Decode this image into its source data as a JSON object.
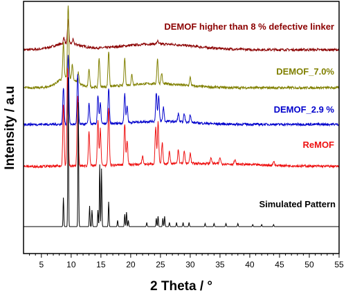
{
  "chart_data": {
    "type": "line",
    "xlabel": "2 Theta /  °",
    "ylabel": "Intensity / a.u",
    "xlim": [
      2,
      55
    ],
    "x_ticks": [
      5,
      10,
      15,
      20,
      25,
      30,
      35,
      40,
      45,
      50,
      55
    ],
    "grid": false,
    "y_ticks_shown": false,
    "series": [
      {
        "name": "DEMOF higher than 8 % defective linker",
        "color": "#8b0000",
        "baseline": 0.0,
        "peaks": [
          [
            8.8,
            0.03
          ],
          [
            9.5,
            0.12
          ],
          [
            10.3,
            0.02
          ],
          [
            24.5,
            0.015
          ]
        ],
        "broad": [
          [
            9.3,
            2.2,
            0.03
          ],
          [
            24.5,
            6.0,
            0.028
          ]
        ]
      },
      {
        "name": "DEMOF_7.0%",
        "color": "#808000",
        "baseline": 0.0,
        "peaks": [
          [
            8.7,
            0.17
          ],
          [
            9.5,
            0.35
          ],
          [
            10.2,
            0.07
          ],
          [
            11.2,
            0.05
          ],
          [
            13.0,
            0.09
          ],
          [
            14.7,
            0.14
          ],
          [
            16.3,
            0.17
          ],
          [
            19.0,
            0.13
          ],
          [
            20.2,
            0.05
          ],
          [
            24.5,
            0.12
          ],
          [
            25.2,
            0.05
          ],
          [
            30.0,
            0.04
          ]
        ],
        "broad": [
          [
            9.3,
            1.5,
            0.05
          ],
          [
            24.0,
            5.0,
            0.02
          ]
        ]
      },
      {
        "name": "DEMOF_2.9 %",
        "color": "#0000cc",
        "baseline": 0.0,
        "peaks": [
          [
            8.7,
            0.18
          ],
          [
            9.5,
            0.34
          ],
          [
            11.1,
            0.24
          ],
          [
            13.0,
            0.1
          ],
          [
            14.5,
            0.14
          ],
          [
            14.9,
            0.1
          ],
          [
            16.3,
            0.17
          ],
          [
            19.0,
            0.14
          ],
          [
            19.4,
            0.08
          ],
          [
            24.3,
            0.14
          ],
          [
            24.7,
            0.12
          ],
          [
            25.5,
            0.07
          ],
          [
            28.0,
            0.04
          ],
          [
            29.0,
            0.04
          ],
          [
            30.0,
            0.04
          ]
        ],
        "broad": [
          [
            25.0,
            5.0,
            0.015
          ]
        ]
      },
      {
        "name": "ReMOF",
        "color": "#ee1111",
        "baseline": 0.0,
        "peaks": [
          [
            8.7,
            0.3
          ],
          [
            9.4,
            0.47
          ],
          [
            11.1,
            0.34
          ],
          [
            13.0,
            0.17
          ],
          [
            14.5,
            0.22
          ],
          [
            14.9,
            0.18
          ],
          [
            16.3,
            0.28
          ],
          [
            19.0,
            0.2
          ],
          [
            19.4,
            0.12
          ],
          [
            22.0,
            0.04
          ],
          [
            24.2,
            0.18
          ],
          [
            24.6,
            0.2
          ],
          [
            25.3,
            0.1
          ],
          [
            26.5,
            0.06
          ],
          [
            28.0,
            0.07
          ],
          [
            29.0,
            0.06
          ],
          [
            30.0,
            0.05
          ],
          [
            33.5,
            0.03
          ],
          [
            35.0,
            0.03
          ],
          [
            37.5,
            0.02
          ],
          [
            44.0,
            0.02
          ]
        ],
        "broad": [
          [
            30.0,
            10.0,
            0.015
          ]
        ]
      },
      {
        "name": "Simulated Pattern",
        "color": "#000000",
        "baseline": 0.0,
        "peaks": [
          [
            8.7,
            0.14
          ],
          [
            9.5,
            0.72
          ],
          [
            11.2,
            0.6
          ],
          [
            13.1,
            0.1
          ],
          [
            13.5,
            0.08
          ],
          [
            14.5,
            0.08
          ],
          [
            14.8,
            0.3
          ],
          [
            15.1,
            0.28
          ],
          [
            16.3,
            0.12
          ],
          [
            17.8,
            0.03
          ],
          [
            19.0,
            0.06
          ],
          [
            19.3,
            0.07
          ],
          [
            19.6,
            0.03
          ],
          [
            22.7,
            0.02
          ],
          [
            24.3,
            0.04
          ],
          [
            24.6,
            0.05
          ],
          [
            25.4,
            0.04
          ],
          [
            25.7,
            0.05
          ],
          [
            26.5,
            0.02
          ],
          [
            27.7,
            0.02
          ],
          [
            28.8,
            0.02
          ],
          [
            29.8,
            0.02
          ],
          [
            32.5,
            0.015
          ],
          [
            34.0,
            0.015
          ],
          [
            36.0,
            0.015
          ],
          [
            38.0,
            0.015
          ],
          [
            40.5,
            0.01
          ],
          [
            42.0,
            0.01
          ],
          [
            44.0,
            0.01
          ]
        ],
        "broad": []
      }
    ]
  },
  "colors": {
    "axis": "#000000",
    "background": "#ffffff"
  }
}
